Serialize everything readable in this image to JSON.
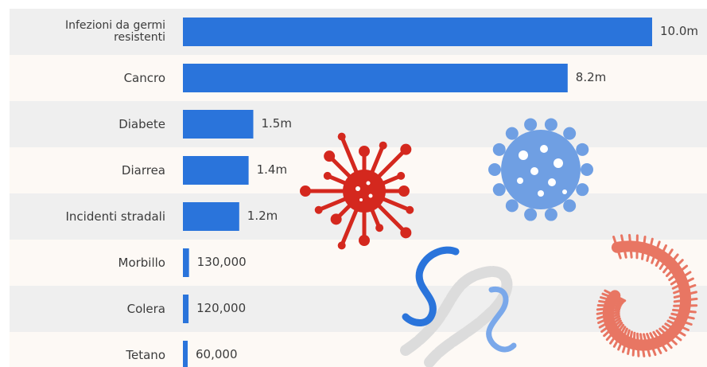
{
  "chart_data": {
    "type": "bar",
    "orientation": "horizontal",
    "categories": [
      "Infezioni da germi resistenti",
      "Cancro",
      "Diabete",
      "Diarrea",
      "Incidenti stradali",
      "Morbillo",
      "Colera",
      "Tetano"
    ],
    "category_lines": [
      [
        "Infezioni da germi",
        "resistenti"
      ],
      [
        "Cancro"
      ],
      [
        "Diabete"
      ],
      [
        "Diarrea"
      ],
      [
        "Incidenti stradali"
      ],
      [
        "Morbillo"
      ],
      [
        "Colera"
      ],
      [
        "Tetano"
      ]
    ],
    "values": [
      10000000,
      8200000,
      1500000,
      1400000,
      1200000,
      130000,
      120000,
      60000
    ],
    "value_labels": [
      "10.0m",
      "8.2m",
      "1.5m",
      "1.4m",
      "1.2m",
      "130,000",
      "120,000",
      "60,000"
    ],
    "bar_color": "#2a74db",
    "row_colors": [
      "#efefef",
      "#fdf9f5"
    ],
    "grid": false,
    "legend": false
  },
  "illustrations": {
    "virus_red_color": "#d4281e",
    "virus_blue_color": "#6f9fe3",
    "bacteria_blue_color": "#2a74db",
    "bacteria_gray_color": "#dcdcdc",
    "bacteria_light_blue_color": "#7aa8ea",
    "worm_color": "#e87663",
    "icons": [
      "red-virus-icon",
      "blue-virus-icon",
      "bacteria-chain-icon",
      "centipede-icon"
    ]
  }
}
